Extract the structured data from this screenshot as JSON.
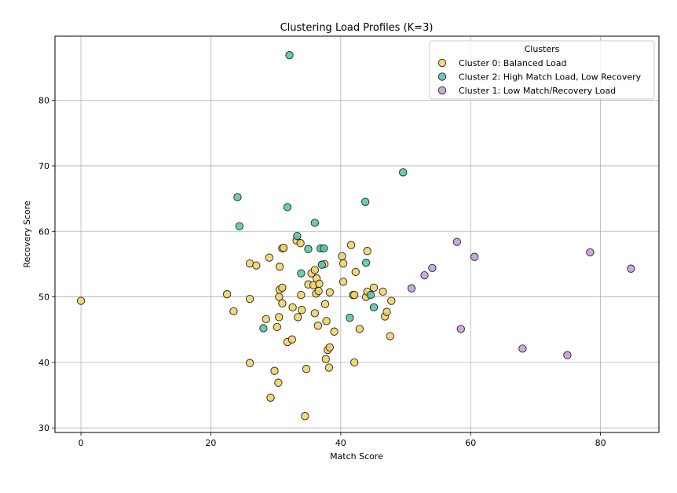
{
  "chart_data": {
    "type": "scatter",
    "title": "Clustering Load Profiles (K=3)",
    "xlabel": "Match Score",
    "ylabel": "Recovery Score",
    "xlim": [
      -4,
      89
    ],
    "ylim": [
      29.3,
      89.8
    ],
    "xticks": [
      0,
      20,
      40,
      60,
      80
    ],
    "yticks": [
      30,
      40,
      50,
      60,
      70,
      80
    ],
    "grid": true,
    "legend": {
      "title": "Clusters",
      "placement": "top-right"
    },
    "series": [
      {
        "name": "Cluster 0: Balanced Load",
        "color": "#f2d060",
        "points": [
          [
            0,
            49.4
          ],
          [
            22.5,
            50.4
          ],
          [
            23.5,
            47.8
          ],
          [
            26,
            55.1
          ],
          [
            26,
            49.7
          ],
          [
            26,
            39.9
          ],
          [
            27,
            54.8
          ],
          [
            28.5,
            46.6
          ],
          [
            29,
            56
          ],
          [
            29.2,
            34.6
          ],
          [
            29.8,
            38.7
          ],
          [
            30.2,
            45.4
          ],
          [
            30.4,
            36.9
          ],
          [
            30.5,
            50
          ],
          [
            30.5,
            46.9
          ],
          [
            30.6,
            51.1
          ],
          [
            30.6,
            54.6
          ],
          [
            31,
            49
          ],
          [
            31,
            51.4
          ],
          [
            31,
            57.4
          ],
          [
            31.2,
            57.5
          ],
          [
            31.8,
            43.1
          ],
          [
            32.5,
            43.5
          ],
          [
            32.6,
            48.4
          ],
          [
            33.2,
            58.6
          ],
          [
            33.4,
            46.9
          ],
          [
            33.8,
            58.2
          ],
          [
            33.9,
            50.3
          ],
          [
            34,
            48
          ],
          [
            34.5,
            31.8
          ],
          [
            34.7,
            39
          ],
          [
            35,
            51.9
          ],
          [
            35.5,
            53.6
          ],
          [
            35.8,
            51.8
          ],
          [
            36,
            54.1
          ],
          [
            36,
            47.5
          ],
          [
            36.2,
            50.5
          ],
          [
            36.3,
            52.8
          ],
          [
            36.5,
            45.6
          ],
          [
            36.6,
            50.9
          ],
          [
            36.7,
            52
          ],
          [
            37.5,
            55
          ],
          [
            37.6,
            48.9
          ],
          [
            37.8,
            46.3
          ],
          [
            37.7,
            40.5
          ],
          [
            38,
            41.9
          ],
          [
            38.2,
            39.2
          ],
          [
            38.3,
            42.3
          ],
          [
            38.3,
            50.7
          ],
          [
            39,
            44.7
          ],
          [
            40.2,
            56.2
          ],
          [
            40.4,
            55.1
          ],
          [
            40.4,
            52.3
          ],
          [
            41.6,
            57.9
          ],
          [
            41.9,
            50.3
          ],
          [
            42.1,
            50.3
          ],
          [
            42.1,
            40
          ],
          [
            42.3,
            53.8
          ],
          [
            42.9,
            45.1
          ],
          [
            43.9,
            50
          ],
          [
            44.1,
            57
          ],
          [
            44.1,
            50.8
          ],
          [
            45.1,
            51.4
          ],
          [
            46.5,
            50.8
          ],
          [
            46.8,
            47
          ],
          [
            47.1,
            47.7
          ],
          [
            47.6,
            44
          ],
          [
            47.8,
            49.4
          ]
        ]
      },
      {
        "name": "Cluster 2: High Match Load, Low Recovery",
        "color": "#4fc4a6",
        "points": [
          [
            24.1,
            65.2
          ],
          [
            24.4,
            60.8
          ],
          [
            28.1,
            45.2
          ],
          [
            31.8,
            63.7
          ],
          [
            32.1,
            86.9
          ],
          [
            33.3,
            59.3
          ],
          [
            33.9,
            53.6
          ],
          [
            35,
            57.3
          ],
          [
            36,
            61.3
          ],
          [
            36.9,
            57.4
          ],
          [
            37.1,
            54.9
          ],
          [
            37.4,
            57.4
          ],
          [
            41.4,
            46.8
          ],
          [
            43.8,
            64.5
          ],
          [
            43.9,
            55.2
          ],
          [
            44.6,
            50.3
          ],
          [
            45.1,
            48.4
          ],
          [
            49.6,
            69
          ]
        ]
      },
      {
        "name": "Cluster 1: Low Match/Recovery Load",
        "color": "#c09bd8",
        "points": [
          [
            50.9,
            51.3
          ],
          [
            52.9,
            53.3
          ],
          [
            54.1,
            54.4
          ],
          [
            57.9,
            58.4
          ],
          [
            58.5,
            45.1
          ],
          [
            60.6,
            56.1
          ],
          [
            68,
            42.1
          ],
          [
            74.9,
            41.1
          ],
          [
            78.4,
            56.8
          ],
          [
            84.7,
            54.3
          ]
        ]
      }
    ]
  }
}
